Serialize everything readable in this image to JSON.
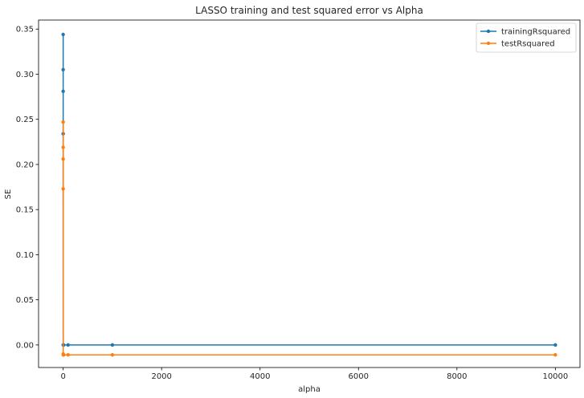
{
  "chart_data": {
    "type": "line",
    "title": "LASSO training and test squared error vs Alpha",
    "xlabel": "alpha",
    "ylabel": "SE",
    "xlim": [
      -500,
      10500
    ],
    "ylim": [
      -0.025,
      0.36
    ],
    "xticks": [
      0,
      2000,
      4000,
      6000,
      8000,
      10000
    ],
    "xtick_labels": [
      "0",
      "2000",
      "4000",
      "6000",
      "8000",
      "10000"
    ],
    "yticks": [
      0.0,
      0.05,
      0.1,
      0.15,
      0.2,
      0.25,
      0.3,
      0.35
    ],
    "ytick_labels": [
      "0.00",
      "0.05",
      "0.10",
      "0.15",
      "0.20",
      "0.25",
      "0.30",
      "0.35"
    ],
    "grid": false,
    "legend_position": "top-right",
    "series": [
      {
        "name": "trainingRsquared",
        "color": "#1f77b4",
        "x": [
          0.0001,
          0.001,
          0.01,
          0.1,
          1,
          10,
          100,
          1000,
          10000
        ],
        "y": [
          0.344,
          0.305,
          0.281,
          0.234,
          0.0,
          0.0,
          0.0,
          0.0,
          0.0
        ]
      },
      {
        "name": "testRsquared",
        "color": "#ff7f0e",
        "x": [
          0.0001,
          0.001,
          0.01,
          0.1,
          0.5,
          1,
          10,
          100,
          1000,
          10000
        ],
        "y": [
          0.247,
          0.219,
          0.206,
          0.173,
          -0.01,
          -0.011,
          -0.011,
          -0.011,
          -0.011,
          -0.011
        ]
      }
    ]
  }
}
